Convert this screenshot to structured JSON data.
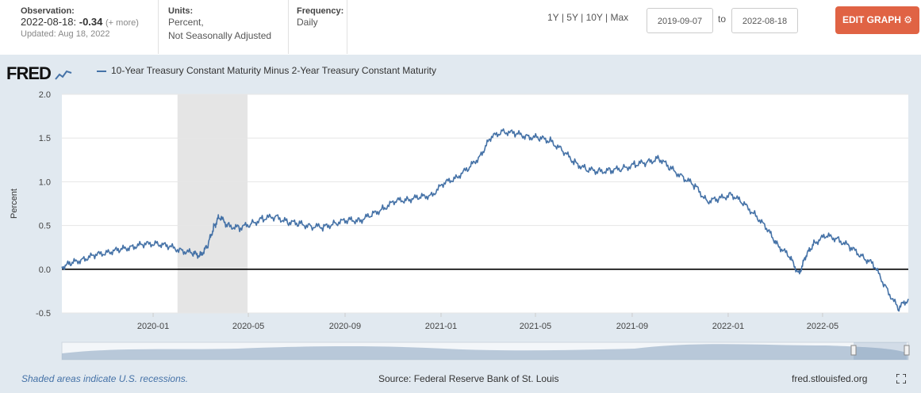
{
  "header": {
    "observation_label": "Observation:",
    "observation_date": "2022-08-18:",
    "observation_value": "-0.34",
    "observation_more": "(+ more)",
    "updated": "Updated: Aug 18, 2022",
    "units_label": "Units:",
    "units_line1": "Percent,",
    "units_line2": "Not Seasonally Adjusted",
    "frequency_label": "Frequency:",
    "frequency_value": "Daily",
    "range_1y": "1Y",
    "range_5y": "5Y",
    "range_10y": "10Y",
    "range_max": "Max",
    "sep": "|",
    "date_from": "2019-09-07",
    "date_to": "2022-08-18",
    "to_label": "to",
    "edit_label": "EDIT GRAPH"
  },
  "logo": "FRED",
  "legend_label": "10-Year Treasury Constant Maturity Minus 2-Year Treasury Constant Maturity",
  "footer": {
    "note": "Shaded areas indicate U.S. recessions.",
    "source": "Source: Federal Reserve Bank of St. Louis",
    "url": "fred.stlouisfed.org"
  },
  "colors": {
    "series": "#4572a7",
    "recession": "#e5e5e5",
    "accent": "#e06344"
  },
  "chart_data": {
    "type": "line",
    "title": "10-Year Treasury Constant Maturity Minus 2-Year Treasury Constant Maturity",
    "ylabel": "Percent",
    "xlabel": "",
    "ylim": [
      -0.5,
      2.0
    ],
    "yticks": [
      -0.5,
      0.0,
      0.5,
      1.0,
      1.5,
      2.0
    ],
    "ytick_labels": [
      "-0.5",
      "0.0",
      "0.5",
      "1.0",
      "1.5",
      "2.0"
    ],
    "xlim": [
      "2019-09-07",
      "2022-08-18"
    ],
    "xticks": [
      "2020-01-01",
      "2020-05-01",
      "2020-09-01",
      "2021-01-01",
      "2021-05-01",
      "2021-09-01",
      "2022-01-01",
      "2022-05-01"
    ],
    "xtick_labels": [
      "2020-01",
      "2020-05",
      "2020-09",
      "2021-01",
      "2021-05",
      "2021-09",
      "2022-01",
      "2022-05"
    ],
    "recession": {
      "start": "2020-02-01",
      "end": "2020-04-30"
    },
    "zero_line": 0.0,
    "series": [
      {
        "name": "10-Year Treasury Constant Maturity Minus 2-Year Treasury Constant Maturity",
        "x": [
          "2019-09-07",
          "2019-09-20",
          "2019-10-05",
          "2019-10-20",
          "2019-11-05",
          "2019-11-20",
          "2019-12-05",
          "2019-12-20",
          "2020-01-05",
          "2020-01-20",
          "2020-02-05",
          "2020-02-20",
          "2020-03-01",
          "2020-03-10",
          "2020-03-18",
          "2020-03-25",
          "2020-04-05",
          "2020-04-20",
          "2020-05-05",
          "2020-05-20",
          "2020-06-05",
          "2020-06-20",
          "2020-07-05",
          "2020-07-20",
          "2020-08-05",
          "2020-08-20",
          "2020-09-05",
          "2020-09-20",
          "2020-10-05",
          "2020-10-20",
          "2020-11-05",
          "2020-11-20",
          "2020-12-05",
          "2020-12-20",
          "2021-01-05",
          "2021-01-20",
          "2021-02-05",
          "2021-02-20",
          "2021-03-05",
          "2021-03-20",
          "2021-04-05",
          "2021-04-20",
          "2021-05-05",
          "2021-05-20",
          "2021-06-05",
          "2021-06-20",
          "2021-07-05",
          "2021-07-20",
          "2021-08-05",
          "2021-08-20",
          "2021-09-05",
          "2021-09-20",
          "2021-10-05",
          "2021-10-20",
          "2021-11-05",
          "2021-11-20",
          "2021-12-05",
          "2021-12-20",
          "2022-01-05",
          "2022-01-20",
          "2022-02-05",
          "2022-02-20",
          "2022-03-05",
          "2022-03-20",
          "2022-04-01",
          "2022-04-10",
          "2022-04-20",
          "2022-05-05",
          "2022-05-20",
          "2022-06-05",
          "2022-06-20",
          "2022-07-05",
          "2022-07-20",
          "2022-08-05",
          "2022-08-18"
        ],
        "y": [
          0.03,
          0.07,
          0.12,
          0.16,
          0.2,
          0.22,
          0.26,
          0.28,
          0.3,
          0.26,
          0.22,
          0.18,
          0.16,
          0.26,
          0.48,
          0.6,
          0.5,
          0.47,
          0.52,
          0.58,
          0.6,
          0.54,
          0.52,
          0.49,
          0.48,
          0.53,
          0.56,
          0.56,
          0.62,
          0.7,
          0.78,
          0.8,
          0.82,
          0.85,
          0.98,
          1.05,
          1.15,
          1.3,
          1.5,
          1.58,
          1.55,
          1.52,
          1.5,
          1.47,
          1.35,
          1.22,
          1.14,
          1.12,
          1.13,
          1.15,
          1.2,
          1.22,
          1.27,
          1.15,
          1.05,
          0.95,
          0.78,
          0.8,
          0.86,
          0.75,
          0.62,
          0.45,
          0.28,
          0.14,
          -0.05,
          0.15,
          0.3,
          0.38,
          0.35,
          0.25,
          0.15,
          0.05,
          -0.2,
          -0.45,
          -0.34
        ]
      }
    ]
  }
}
